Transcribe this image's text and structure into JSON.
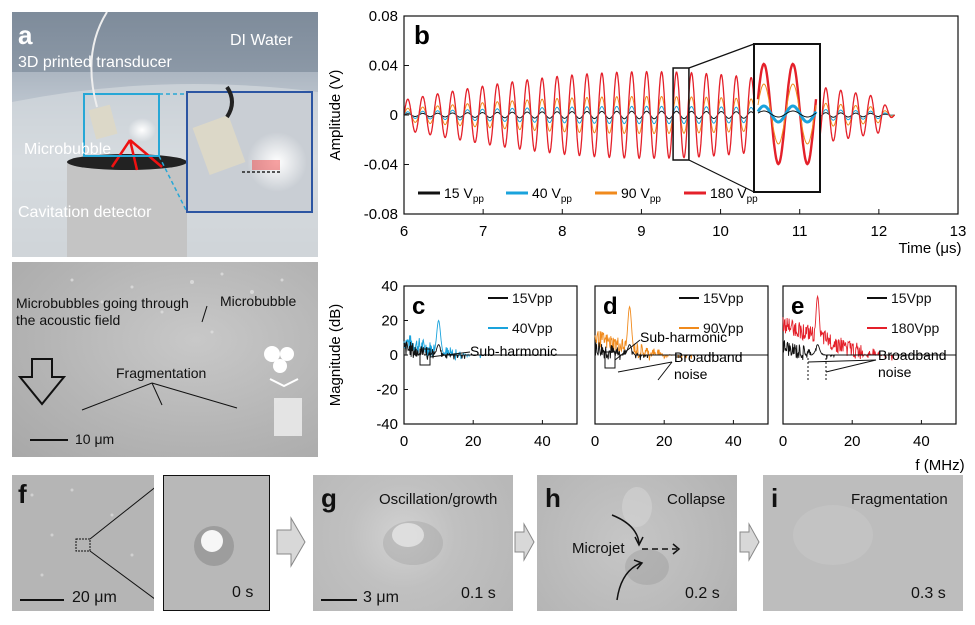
{
  "panel_labels": {
    "a": "a",
    "b": "b",
    "c": "c",
    "d": "d",
    "e": "e",
    "f": "f",
    "g": "g",
    "h": "h",
    "i": "i"
  },
  "panel_a": {
    "transducer_label": "3D printed transducer",
    "water_label": "DI Water",
    "microbubble_label": "Microbubble",
    "detector_label": "Cavitation detector",
    "lower_microbubble_label": "Microbubble",
    "going_through_label": "Microbubbles  going through the acoustic field",
    "fragmentation_label": "Fragmentation",
    "scale_label": "10 μm"
  },
  "panel_f": {
    "scale_label": "20 μm",
    "time_label": "0 s"
  },
  "panel_g": {
    "title": "Oscillation/growth",
    "scale_label": "3 μm",
    "time_label": "0.1 s"
  },
  "panel_h": {
    "title": "Collapse",
    "microjet_label": "Microjet",
    "time_label": "0.2 s"
  },
  "panel_i": {
    "title": "Fragmentation",
    "time_label": "0.3 s"
  },
  "colors": {
    "black": "#111111",
    "blue": "#1aa3dc",
    "orange": "#f08a1c",
    "red": "#e4202a"
  },
  "chart_data": [
    {
      "id": "b",
      "type": "line",
      "xlabel": "Time (μs)",
      "ylabel": "Amplitude (V)",
      "xlim": [
        6,
        13
      ],
      "ylim": [
        -0.08,
        0.08
      ],
      "xticks": [
        "6",
        "7",
        "8",
        "9",
        "10",
        "11",
        "12",
        "13"
      ],
      "yticks": [
        "-0.08",
        "-0.04",
        "0",
        "0.04",
        "0.08"
      ],
      "legend_position": "bottom-left",
      "series": [
        {
          "name": "15 V",
          "subscript": "pp",
          "color": "#111111",
          "amplitude": 0.003,
          "frequency_mhz": 5.3,
          "x_range": [
            6,
            12.2
          ]
        },
        {
          "name": "40 V",
          "subscript": "pp",
          "color": "#1aa3dc",
          "amplitude": 0.007,
          "frequency_mhz": 5.3,
          "x_range": [
            6,
            12.2
          ]
        },
        {
          "name": "90 V",
          "subscript": "pp",
          "color": "#f08a1c",
          "amplitude": 0.015,
          "frequency_mhz": 5.3,
          "x_range": [
            6,
            12.2
          ]
        },
        {
          "name": "180 V",
          "subscript": "pp",
          "color": "#e4202a",
          "amplitude": 0.035,
          "frequency_mhz": 5.3,
          "x_range": [
            6,
            12.2
          ]
        }
      ],
      "inset_x_range": [
        9.4,
        9.6
      ]
    },
    {
      "id": "c",
      "type": "line",
      "xlabel": "",
      "ylabel": "Magnitude (dB)",
      "xlim": [
        0,
        50
      ],
      "ylim": [
        -40,
        40
      ],
      "xticks": [
        "0",
        "20",
        "40"
      ],
      "yticks": [
        "-40",
        "-20",
        "0",
        "20",
        "40"
      ],
      "series": [
        {
          "name": "15Vpp",
          "color": "#111111",
          "peak_x": 10,
          "peak_y": 6
        },
        {
          "name": "40Vpp",
          "color": "#1aa3dc",
          "peak_x": 10,
          "peak_y": 20
        }
      ],
      "annotations": [
        "Sub-harmonic"
      ]
    },
    {
      "id": "d",
      "type": "line",
      "xlabel": "",
      "ylabel": "",
      "xlim": [
        0,
        50
      ],
      "ylim": [
        -40,
        40
      ],
      "xticks": [
        "0",
        "20",
        "40"
      ],
      "series": [
        {
          "name": "15Vpp",
          "color": "#111111",
          "peak_x": 10,
          "peak_y": 6
        },
        {
          "name": "90Vpp",
          "color": "#f08a1c",
          "peak_x": 10,
          "peak_y": 28
        }
      ],
      "annotations": [
        "Sub-harmonic",
        "Broadband",
        "noise"
      ]
    },
    {
      "id": "e",
      "type": "line",
      "xlabel": "f (MHz)",
      "ylabel": "",
      "xlim": [
        0,
        50
      ],
      "ylim": [
        -40,
        40
      ],
      "xticks": [
        "0",
        "20",
        "40"
      ],
      "series": [
        {
          "name": "15Vpp",
          "color": "#111111",
          "peak_x": 10,
          "peak_y": 6
        },
        {
          "name": "180Vpp",
          "color": "#e4202a",
          "peak_x": 10,
          "peak_y": 34
        }
      ],
      "annotations": [
        "Broadband",
        "noise"
      ]
    }
  ]
}
